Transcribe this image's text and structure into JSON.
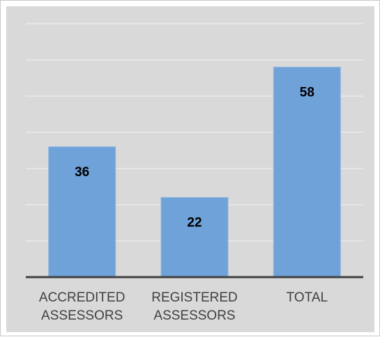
{
  "chart_data": {
    "type": "bar",
    "categories": [
      [
        "ACCREDITED",
        "ASSESSORS"
      ],
      [
        "REGISTERED",
        "ASSESSORS"
      ],
      [
        "TOTAL"
      ]
    ],
    "values": [
      36,
      22,
      58
    ],
    "data_labels": [
      "36",
      "22",
      "58"
    ],
    "ylim": [
      0,
      70
    ],
    "grid": true,
    "legend": "none",
    "colors": {
      "plot_background": "#d9d9d9",
      "bar_fill": "#6fa2d8",
      "bar_edge": "#8fb8e3",
      "gridline": "#f2f2f2",
      "axis": "#404040"
    }
  }
}
